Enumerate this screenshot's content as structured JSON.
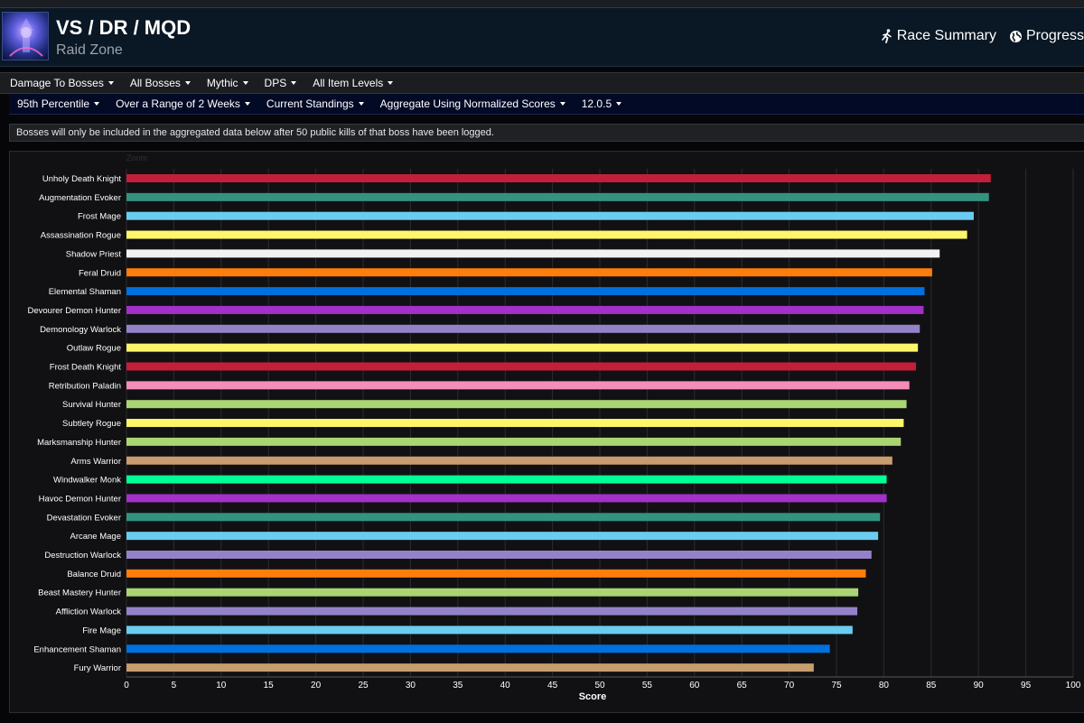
{
  "header": {
    "title": "VS / DR / MQD",
    "subtitle": "Raid Zone",
    "links": [
      {
        "label": "Race Summary",
        "icon": "running-figure-icon"
      },
      {
        "label": "Progress",
        "icon": "globe-icon"
      }
    ]
  },
  "filters_primary": [
    "Damage To Bosses",
    "All Bosses",
    "Mythic",
    "DPS",
    "All Item Levels"
  ],
  "filters_secondary": [
    "95th Percentile",
    "Over a Range of 2 Weeks",
    "Current Standings",
    "Aggregate Using Normalized Scores",
    "12.0.5"
  ],
  "notice": "Bosses will only be included in the aggregated data below after 50 public kills of that boss have been logged.",
  "chart_data": {
    "type": "bar",
    "orientation": "horizontal",
    "zoom_label": "Zoom",
    "xlabel": "Score",
    "xlim": [
      0,
      100
    ],
    "xticks": [
      0,
      5,
      10,
      15,
      20,
      25,
      30,
      35,
      40,
      45,
      50,
      55,
      60,
      65,
      70,
      75,
      80,
      85,
      90,
      95,
      100
    ],
    "grid": true,
    "categories": [
      "Unholy Death Knight",
      "Augmentation Evoker",
      "Frost Mage",
      "Assassination Rogue",
      "Shadow Priest",
      "Feral Druid",
      "Elemental Shaman",
      "Devourer Demon Hunter",
      "Demonology Warlock",
      "Outlaw Rogue",
      "Frost Death Knight",
      "Retribution Paladin",
      "Survival Hunter",
      "Subtlety Rogue",
      "Marksmanship Hunter",
      "Arms Warrior",
      "Windwalker Monk",
      "Havoc Demon Hunter",
      "Devastation Evoker",
      "Arcane Mage",
      "Destruction Warlock",
      "Balance Druid",
      "Beast Mastery Hunter",
      "Affliction Warlock",
      "Fire Mage",
      "Enhancement Shaman",
      "Fury Warrior"
    ],
    "values": [
      91.3,
      91.1,
      89.5,
      88.8,
      85.9,
      85.1,
      84.3,
      84.2,
      83.8,
      83.6,
      83.4,
      82.7,
      82.4,
      82.1,
      81.8,
      80.9,
      80.3,
      80.3,
      79.6,
      79.4,
      78.7,
      78.1,
      77.3,
      77.2,
      76.7,
      74.3,
      72.6
    ],
    "colors": [
      "#c41e3a",
      "#33937f",
      "#69ccf0",
      "#fff569",
      "#f2f2f2",
      "#ff7d0a",
      "#0070de",
      "#a330c9",
      "#9482c9",
      "#fff569",
      "#c41e3a",
      "#f58cba",
      "#abd473",
      "#fff569",
      "#abd473",
      "#c79c6e",
      "#00ff96",
      "#a330c9",
      "#33937f",
      "#69ccf0",
      "#9482c9",
      "#ff7d0a",
      "#abd473",
      "#9482c9",
      "#69ccf0",
      "#0070de",
      "#c79c6e"
    ]
  }
}
